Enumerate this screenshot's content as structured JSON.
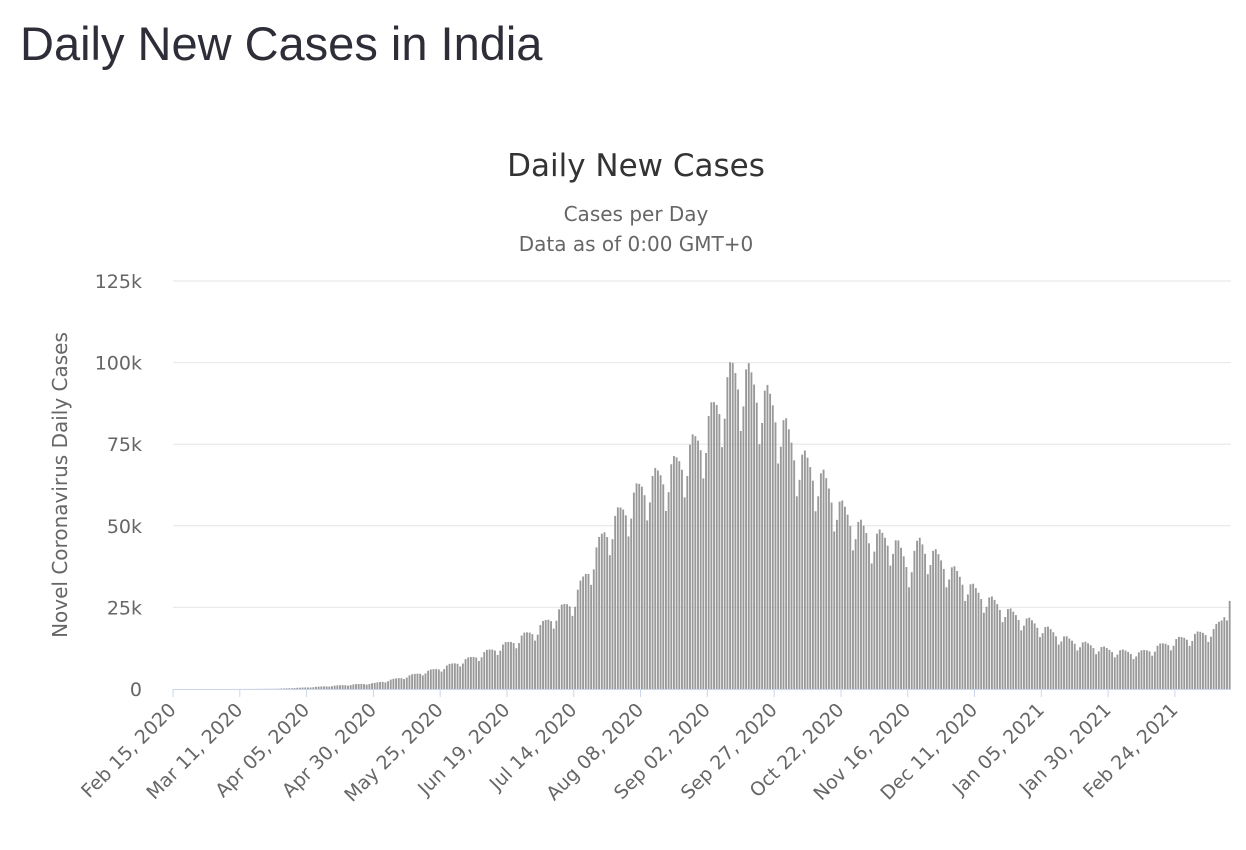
{
  "page": {
    "title": "Daily New Cases in India"
  },
  "chart_data": {
    "type": "bar",
    "title": "Daily New Cases",
    "subtitle_lines": [
      "Cases per Day",
      "Data as of 0:00 GMT+0"
    ],
    "xlabel": "",
    "ylabel": "Novel Coronavirus Daily Cases",
    "ylim": [
      0,
      125000
    ],
    "y_ticks": [
      {
        "value": 0,
        "label": "0"
      },
      {
        "value": 25000,
        "label": "25k"
      },
      {
        "value": 50000,
        "label": "50k"
      },
      {
        "value": 75000,
        "label": "75k"
      },
      {
        "value": 100000,
        "label": "100k"
      },
      {
        "value": 125000,
        "label": "125k"
      }
    ],
    "x_start": "2020-02-15",
    "x_end": "2021-03-16",
    "x_ticks": [
      {
        "date": "2020-02-15",
        "label": "Feb 15, 2020"
      },
      {
        "date": "2020-03-11",
        "label": "Mar 11, 2020"
      },
      {
        "date": "2020-04-05",
        "label": "Apr 05, 2020"
      },
      {
        "date": "2020-04-30",
        "label": "Apr 30, 2020"
      },
      {
        "date": "2020-05-25",
        "label": "May 25, 2020"
      },
      {
        "date": "2020-06-19",
        "label": "Jun 19, 2020"
      },
      {
        "date": "2020-07-14",
        "label": "Jul 14, 2020"
      },
      {
        "date": "2020-08-08",
        "label": "Aug 08, 2020"
      },
      {
        "date": "2020-09-02",
        "label": "Sep 02, 2020"
      },
      {
        "date": "2020-09-27",
        "label": "Sep 27, 2020"
      },
      {
        "date": "2020-10-22",
        "label": "Oct 22, 2020"
      },
      {
        "date": "2020-11-16",
        "label": "Nov 16, 2020"
      },
      {
        "date": "2020-12-11",
        "label": "Dec 11, 2020"
      },
      {
        "date": "2021-01-05",
        "label": "Jan 05, 2021"
      },
      {
        "date": "2021-01-30",
        "label": "Jan 30, 2021"
      },
      {
        "date": "2021-02-24",
        "label": "Feb 24, 2021"
      }
    ],
    "series": [
      {
        "points": [
          [
            "2020-02-15",
            0
          ],
          [
            "2020-03-02",
            0
          ],
          [
            "2020-03-15",
            20
          ],
          [
            "2020-03-25",
            100
          ],
          [
            "2020-04-05",
            500
          ],
          [
            "2020-04-15",
            1000
          ],
          [
            "2020-04-30",
            1800
          ],
          [
            "2020-05-10",
            3500
          ],
          [
            "2020-05-25",
            6500
          ],
          [
            "2020-06-05",
            9500
          ],
          [
            "2020-06-19",
            14000
          ],
          [
            "2020-06-30",
            18500
          ],
          [
            "2020-07-14",
            28000
          ],
          [
            "2020-07-25",
            48000
          ],
          [
            "2020-08-08",
            62000
          ],
          [
            "2020-08-20",
            68000
          ],
          [
            "2020-08-30",
            77000
          ],
          [
            "2020-09-05",
            87000
          ],
          [
            "2020-09-11",
            97000
          ],
          [
            "2020-09-16",
            96000
          ],
          [
            "2020-09-27",
            86000
          ],
          [
            "2020-10-05",
            72000
          ],
          [
            "2020-10-15",
            64000
          ],
          [
            "2020-10-22",
            55000
          ],
          [
            "2020-11-01",
            47000
          ],
          [
            "2020-11-10",
            46000
          ],
          [
            "2020-11-16",
            38000
          ],
          [
            "2020-11-20",
            45000
          ],
          [
            "2020-11-30",
            38000
          ],
          [
            "2020-12-11",
            30000
          ],
          [
            "2020-12-25",
            23000
          ],
          [
            "2021-01-05",
            19000
          ],
          [
            "2021-01-15",
            15000
          ],
          [
            "2021-01-30",
            12000
          ],
          [
            "2021-02-10",
            11000
          ],
          [
            "2021-02-24",
            15000
          ],
          [
            "2021-03-05",
            17000
          ],
          [
            "2021-03-10",
            18000
          ],
          [
            "2021-03-14",
            22000
          ],
          [
            "2021-03-15",
            21000
          ],
          [
            "2021-03-16",
            27000
          ]
        ]
      }
    ],
    "colors": {
      "bar": "#999999",
      "grid": "#e6e6e6",
      "axis_line": "#ccd6eb",
      "text": "#666666",
      "title": "#333333"
    },
    "grid": true,
    "legend": "none"
  }
}
